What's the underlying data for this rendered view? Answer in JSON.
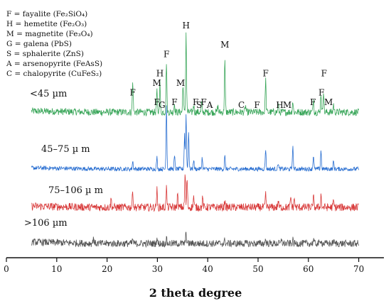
{
  "chart_data": {
    "type": "line",
    "title": "",
    "xlabel": "2 theta degree",
    "ylabel": "",
    "xlim": [
      0,
      75
    ],
    "xticks": [
      0,
      10,
      20,
      30,
      40,
      50,
      60,
      70
    ],
    "legend": {
      "placement": "top-left",
      "entries": [
        "F = fayalite (Fe₂SiO₄)",
        "H = hemetite (Fe₂O₃)",
        "M = magnetite (Fe₃O₄)",
        "G = galena (PbS)",
        "S = sphalerite (ZnS)",
        "A = arsenopyrite (FeAsS)",
        "C = chalopyrite (CuFeS₂)"
      ]
    },
    "series": [
      {
        "name": "<45 µm",
        "color": "#3aa65a",
        "peaks": [
          [
            25.1,
            0.38
          ],
          [
            29.9,
            0.26
          ],
          [
            30.5,
            0.37
          ],
          [
            31.8,
            0.64
          ],
          [
            33.4,
            0.11
          ],
          [
            35.1,
            0.36
          ],
          [
            35.7,
            1.0
          ],
          [
            37.2,
            0.09
          ],
          [
            38.8,
            0.12
          ],
          [
            42.0,
            0.08
          ],
          [
            43.4,
            0.65
          ],
          [
            47.5,
            0.08
          ],
          [
            51.5,
            0.42
          ],
          [
            54.0,
            0.1
          ],
          [
            56.9,
            0.14
          ],
          [
            61.0,
            0.18
          ],
          [
            62.5,
            0.24
          ],
          [
            63.0,
            0.28
          ],
          [
            65.0,
            0.1
          ]
        ]
      },
      {
        "name": "45–75 µ m",
        "color": "#2a6fd1",
        "peaks": [
          [
            25.1,
            0.12
          ],
          [
            29.9,
            0.18
          ],
          [
            31.8,
            1.0
          ],
          [
            33.4,
            0.2
          ],
          [
            35.4,
            0.55
          ],
          [
            35.7,
            0.85
          ],
          [
            36.2,
            0.6
          ],
          [
            37.2,
            0.15
          ],
          [
            38.9,
            0.18
          ],
          [
            43.4,
            0.2
          ],
          [
            51.5,
            0.32
          ],
          [
            54.0,
            0.1
          ],
          [
            56.9,
            0.35
          ],
          [
            61.0,
            0.22
          ],
          [
            62.5,
            0.3
          ],
          [
            65.0,
            0.12
          ]
        ]
      },
      {
        "name": "75–106 µ m",
        "color": "#d83a3a",
        "peaks": [
          [
            20.8,
            0.25
          ],
          [
            25.1,
            0.45
          ],
          [
            29.9,
            0.5
          ],
          [
            31.8,
            0.55
          ],
          [
            34.0,
            0.35
          ],
          [
            35.5,
            0.95
          ],
          [
            35.9,
            0.8
          ],
          [
            37.2,
            0.3
          ],
          [
            39.0,
            0.28
          ],
          [
            43.4,
            0.2
          ],
          [
            51.5,
            0.35
          ],
          [
            54.0,
            0.18
          ],
          [
            56.5,
            0.3
          ],
          [
            57.2,
            0.28
          ],
          [
            61.0,
            0.3
          ],
          [
            62.5,
            0.35
          ],
          [
            65.0,
            0.18
          ]
        ]
      },
      {
        "name": ">106 µm",
        "color": "#555555",
        "peaks": [
          [
            17.3,
            0.3
          ],
          [
            25.1,
            0.2
          ],
          [
            29.9,
            0.25
          ],
          [
            31.8,
            0.2
          ],
          [
            35.7,
            0.5
          ],
          [
            43.4,
            0.15
          ],
          [
            51.5,
            0.2
          ],
          [
            54.7,
            0.18
          ],
          [
            56.9,
            0.15
          ],
          [
            61.0,
            0.18
          ],
          [
            62.5,
            0.2
          ],
          [
            65.0,
            0.12
          ]
        ]
      }
    ],
    "peak_labels": [
      {
        "text": "F",
        "x": 25.1,
        "series": 0,
        "row": 1
      },
      {
        "text": "M",
        "x": 29.9,
        "series": 0,
        "row": 2
      },
      {
        "text": "F",
        "x": 29.9,
        "series": 0,
        "row": 0
      },
      {
        "text": "H",
        "x": 30.5,
        "series": 0,
        "row": 3
      },
      {
        "text": "G",
        "x": 30.9,
        "series": 0,
        "row": -1
      },
      {
        "text": "F",
        "x": 31.8,
        "series": 0,
        "row": 5
      },
      {
        "text": "F",
        "x": 33.4,
        "series": 0,
        "row": 0
      },
      {
        "text": "M",
        "x": 34.6,
        "series": 0,
        "row": 2
      },
      {
        "text": "H",
        "x": 35.7,
        "series": 0,
        "row": 8
      },
      {
        "text": "F",
        "x": 37.6,
        "series": 0,
        "row": 0
      },
      {
        "text": "S",
        "x": 38.3,
        "series": 0,
        "row": -1
      },
      {
        "text": "F",
        "x": 39.2,
        "series": 0,
        "row": 0
      },
      {
        "text": "A",
        "x": 40.4,
        "series": 0,
        "row": -1
      },
      {
        "text": "M",
        "x": 43.4,
        "series": 0,
        "row": 6
      },
      {
        "text": "C",
        "x": 46.7,
        "series": 0,
        "row": -1
      },
      {
        "text": "F",
        "x": 49.8,
        "series": 0,
        "row": -1
      },
      {
        "text": "F",
        "x": 51.5,
        "series": 0,
        "row": 3
      },
      {
        "text": "H",
        "x": 54.3,
        "series": 0,
        "row": -1
      },
      {
        "text": "M",
        "x": 55.8,
        "series": 0,
        "row": -1
      },
      {
        "text": "F",
        "x": 60.9,
        "series": 0,
        "row": 0
      },
      {
        "text": "F",
        "x": 62.6,
        "series": 0,
        "row": 1
      },
      {
        "text": "F",
        "x": 63.1,
        "series": 0,
        "row": 3
      },
      {
        "text": "M",
        "x": 64.0,
        "series": 0,
        "row": 0
      }
    ]
  }
}
